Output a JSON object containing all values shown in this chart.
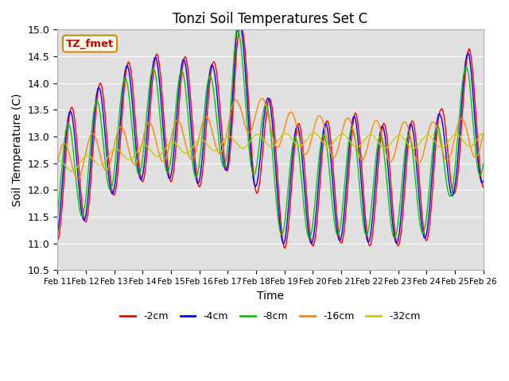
{
  "title": "Tonzi Soil Temperatures Set C",
  "xlabel": "Time",
  "ylabel": "Soil Temperature (C)",
  "ylim": [
    10.5,
    15.0
  ],
  "xtick_labels": [
    "Feb 11",
    "Feb 12",
    "Feb 13",
    "Feb 14",
    "Feb 15",
    "Feb 16",
    "Feb 17",
    "Feb 18",
    "Feb 19",
    "Feb 20",
    "Feb 21",
    "Feb 22",
    "Feb 23",
    "Feb 24",
    "Feb 25",
    "Feb 26"
  ],
  "annotation_text": "TZ_fmet",
  "annotation_color": "#cc0000",
  "annotation_bg": "#ffffee",
  "annotation_border": "#cc8800",
  "series": [
    {
      "label": "-2cm",
      "color": "#ff0000"
    },
    {
      "label": "-4cm",
      "color": "#0000ff"
    },
    {
      "label": "-8cm",
      "color": "#00cc00"
    },
    {
      "label": "-16cm",
      "color": "#ff8800"
    },
    {
      "label": "-32cm",
      "color": "#cccc00"
    }
  ],
  "background_color": "#e8e8e8",
  "title_fontsize": 12,
  "axis_fontsize": 10,
  "legend_fontsize": 9
}
